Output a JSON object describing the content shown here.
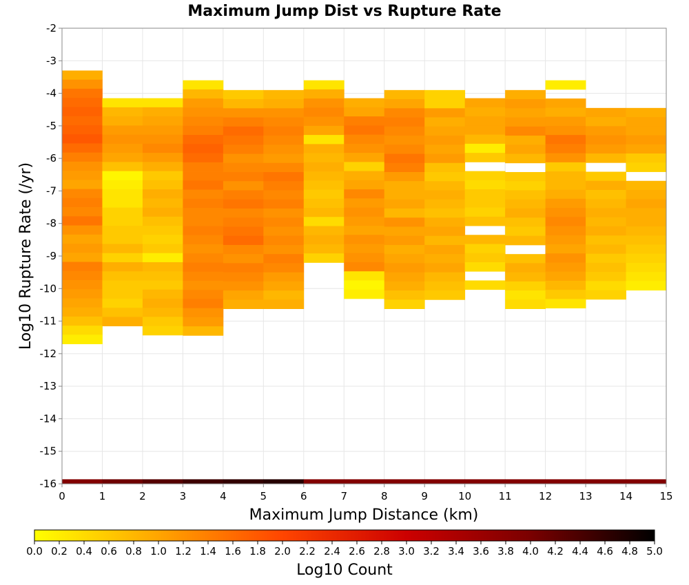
{
  "chart_data": {
    "type": "heatmap",
    "title": "Maximum Jump Dist vs Rupture Rate",
    "xlabel": "Maximum Jump Distance (km)",
    "ylabel": "Log10 Rupture Rate (/yr)",
    "xlim": [
      0,
      15
    ],
    "ylim": [
      -16,
      -2
    ],
    "x_ticks": [
      "0",
      "1",
      "2",
      "3",
      "4",
      "5",
      "6",
      "7",
      "8",
      "9",
      "10",
      "11",
      "12",
      "13",
      "14",
      "15"
    ],
    "y_ticks": [
      "-2",
      "-3",
      "-4",
      "-5",
      "-6",
      "-7",
      "-8",
      "-9",
      "-10",
      "-11",
      "-12",
      "-13",
      "-14",
      "-15",
      "-16"
    ],
    "grid": true,
    "bin_width_x": 1,
    "bin_height_y": 0.28,
    "colorbar": {
      "label": "Log10 Count",
      "range": [
        0,
        5
      ],
      "ticks": [
        "0.0",
        "0.2",
        "0.4",
        "0.6",
        "0.8",
        "1.0",
        "1.2",
        "1.4",
        "1.6",
        "1.8",
        "2.0",
        "2.2",
        "2.4",
        "2.6",
        "2.8",
        "3.0",
        "3.2",
        "3.4",
        "3.6",
        "3.8",
        "4.0",
        "4.2",
        "4.4",
        "4.6",
        "4.8",
        "5.0"
      ],
      "colors": [
        "#ffff00",
        "#ffa500",
        "#ff4500",
        "#cc0000",
        "#7a0000",
        "#000000"
      ],
      "placement": "bottom"
    },
    "bottom_row_y": -15.93,
    "bottom_row": [
      3.9,
      4.1,
      4.3,
      4.5,
      4.6,
      4.7,
      3.9,
      3.9,
      3.9,
      3.9,
      3.9,
      3.9,
      3.9,
      3.9,
      3.9
    ],
    "columns": [
      {
        "x": 0,
        "bin_top": -3.3,
        "values": [
          0.9,
          1.2,
          1.5,
          1.6,
          1.7,
          1.6,
          1.7,
          1.8,
          1.6,
          1.4,
          1.2,
          1.1,
          1.0,
          1.3,
          1.4,
          1.3,
          1.5,
          1.2,
          1.0,
          1.1,
          1.0,
          1.4,
          1.3,
          1.2,
          1.1,
          1.0,
          0.9,
          0.7,
          0.4,
          0.2
        ]
      },
      {
        "x": 1,
        "bin_top": -4.15,
        "values": [
          0.3,
          0.8,
          0.9,
          1.1,
          1.2,
          1.1,
          1.0,
          0.7,
          0.1,
          0.2,
          0.3,
          0.3,
          0.5,
          0.5,
          0.6,
          0.6,
          0.8,
          0.5,
          0.9,
          0.7,
          0.6,
          0.6,
          0.5,
          0.7,
          0.9
        ]
      },
      {
        "x": 2,
        "bin_top": -4.15,
        "values": [
          0.3,
          0.9,
          1.0,
          1.1,
          1.2,
          1.3,
          1.1,
          0.9,
          0.6,
          0.7,
          0.9,
          0.8,
          0.9,
          0.7,
          0.6,
          0.5,
          0.6,
          0.2,
          0.8,
          0.7,
          0.6,
          0.8,
          0.9,
          0.8,
          0.6,
          0.5
        ]
      },
      {
        "x": 3,
        "bin_top": -3.6,
        "values": [
          0.3,
          0.8,
          1.1,
          1.2,
          1.3,
          1.4,
          1.6,
          1.7,
          1.6,
          1.4,
          1.4,
          1.5,
          1.3,
          1.4,
          1.3,
          1.3,
          1.4,
          1.3,
          1.2,
          1.3,
          1.4,
          1.3,
          1.2,
          1.3,
          1.4,
          1.2,
          1.1,
          0.8
        ]
      },
      {
        "x": 4,
        "bin_top": -3.9,
        "values": [
          0.6,
          0.8,
          1.2,
          1.4,
          1.6,
          1.5,
          1.4,
          1.2,
          1.3,
          1.4,
          1.2,
          1.4,
          1.5,
          1.3,
          1.4,
          1.5,
          1.6,
          1.3,
          1.2,
          1.4,
          1.3,
          1.2,
          1.0,
          0.9
        ]
      },
      {
        "x": 5,
        "bin_top": -3.9,
        "values": [
          0.8,
          0.9,
          1.2,
          1.3,
          1.4,
          1.3,
          1.2,
          1.1,
          1.3,
          1.5,
          1.4,
          1.3,
          1.4,
          1.2,
          1.3,
          1.2,
          1.3,
          1.2,
          1.4,
          1.3,
          1.1,
          1.0,
          0.8,
          0.9
        ]
      },
      {
        "x": 6,
        "bin_top": -3.6,
        "values": [
          0.3,
          0.9,
          1.2,
          1.3,
          1.2,
          1.0,
          0.3,
          0.9,
          0.8,
          0.9,
          0.8,
          0.7,
          0.6,
          0.7,
          0.8,
          0.4,
          0.8,
          0.9,
          0.8,
          0.5
        ]
      },
      {
        "x": 7,
        "bin_top": -4.15,
        "values": [
          0.9,
          1.0,
          1.4,
          1.5,
          1.3,
          1.2,
          1.0,
          0.5,
          0.9,
          1.0,
          1.3,
          1.1,
          1.2,
          1.1,
          1.0,
          1.2,
          1.1,
          1.2,
          1.3,
          0.3,
          0.1,
          0.2
        ]
      },
      {
        "x": 8,
        "bin_top": -3.9,
        "values": [
          0.8,
          1.0,
          1.3,
          1.4,
          1.3,
          1.2,
          1.3,
          1.5,
          1.4,
          1.1,
          0.9,
          0.9,
          1.0,
          0.8,
          1.2,
          1.0,
          1.1,
          0.9,
          1.0,
          1.1,
          1.0,
          0.9,
          0.7,
          0.5
        ]
      },
      {
        "x": 9,
        "bin_top": -3.9,
        "values": [
          0.5,
          0.5,
          1.1,
          0.9,
          1.0,
          1.1,
          1.0,
          1.1,
          0.7,
          0.6,
          0.8,
          0.9,
          0.8,
          0.7,
          0.9,
          1.0,
          0.8,
          1.0,
          0.9,
          1.0,
          0.8,
          0.7,
          0.6
        ]
      },
      {
        "x": 10,
        "bin_top": -4.15,
        "values": [
          1.0,
          0.9,
          1.0,
          1.0,
          0.8,
          0.2,
          0.6,
          null,
          0.5,
          0.4,
          0.6,
          0.6,
          0.5,
          0.7,
          null,
          0.8,
          0.5,
          0.6,
          0.4,
          null,
          0.4
        ]
      },
      {
        "x": 11,
        "bin_top": -3.9,
        "values": [
          0.9,
          1.1,
          1.0,
          1.1,
          1.3,
          0.9,
          1.0,
          0.8,
          null,
          0.6,
          0.5,
          0.7,
          0.8,
          0.9,
          0.7,
          0.6,
          0.8,
          null,
          0.7,
          0.9,
          0.8,
          0.5,
          0.3,
          0.4
        ]
      },
      {
        "x": 12,
        "bin_top": -3.6,
        "values": [
          0.2,
          null,
          1.0,
          0.9,
          1.1,
          1.2,
          1.5,
          1.4,
          1.2,
          0.6,
          0.8,
          0.8,
          0.9,
          1.1,
          1.2,
          1.3,
          1.2,
          1.1,
          1.0,
          1.2,
          1.1,
          1.0,
          0.8,
          0.6,
          0.3
        ]
      },
      {
        "x": 13,
        "bin_top": -4.45,
        "values": [
          1.0,
          0.9,
          1.1,
          1.2,
          1.1,
          0.8,
          null,
          0.6,
          0.9,
          0.7,
          0.8,
          0.9,
          0.8,
          0.9,
          0.7,
          0.8,
          0.6,
          0.7,
          0.6,
          0.4,
          0.5
        ]
      },
      {
        "x": 14,
        "bin_top": -4.45,
        "values": [
          0.9,
          1.0,
          1.0,
          1.1,
          1.0,
          0.6,
          0.5,
          null,
          0.8,
          0.9,
          1.0,
          0.9,
          0.9,
          0.8,
          0.7,
          0.6,
          0.5,
          0.4,
          0.3,
          0.2
        ]
      }
    ]
  }
}
